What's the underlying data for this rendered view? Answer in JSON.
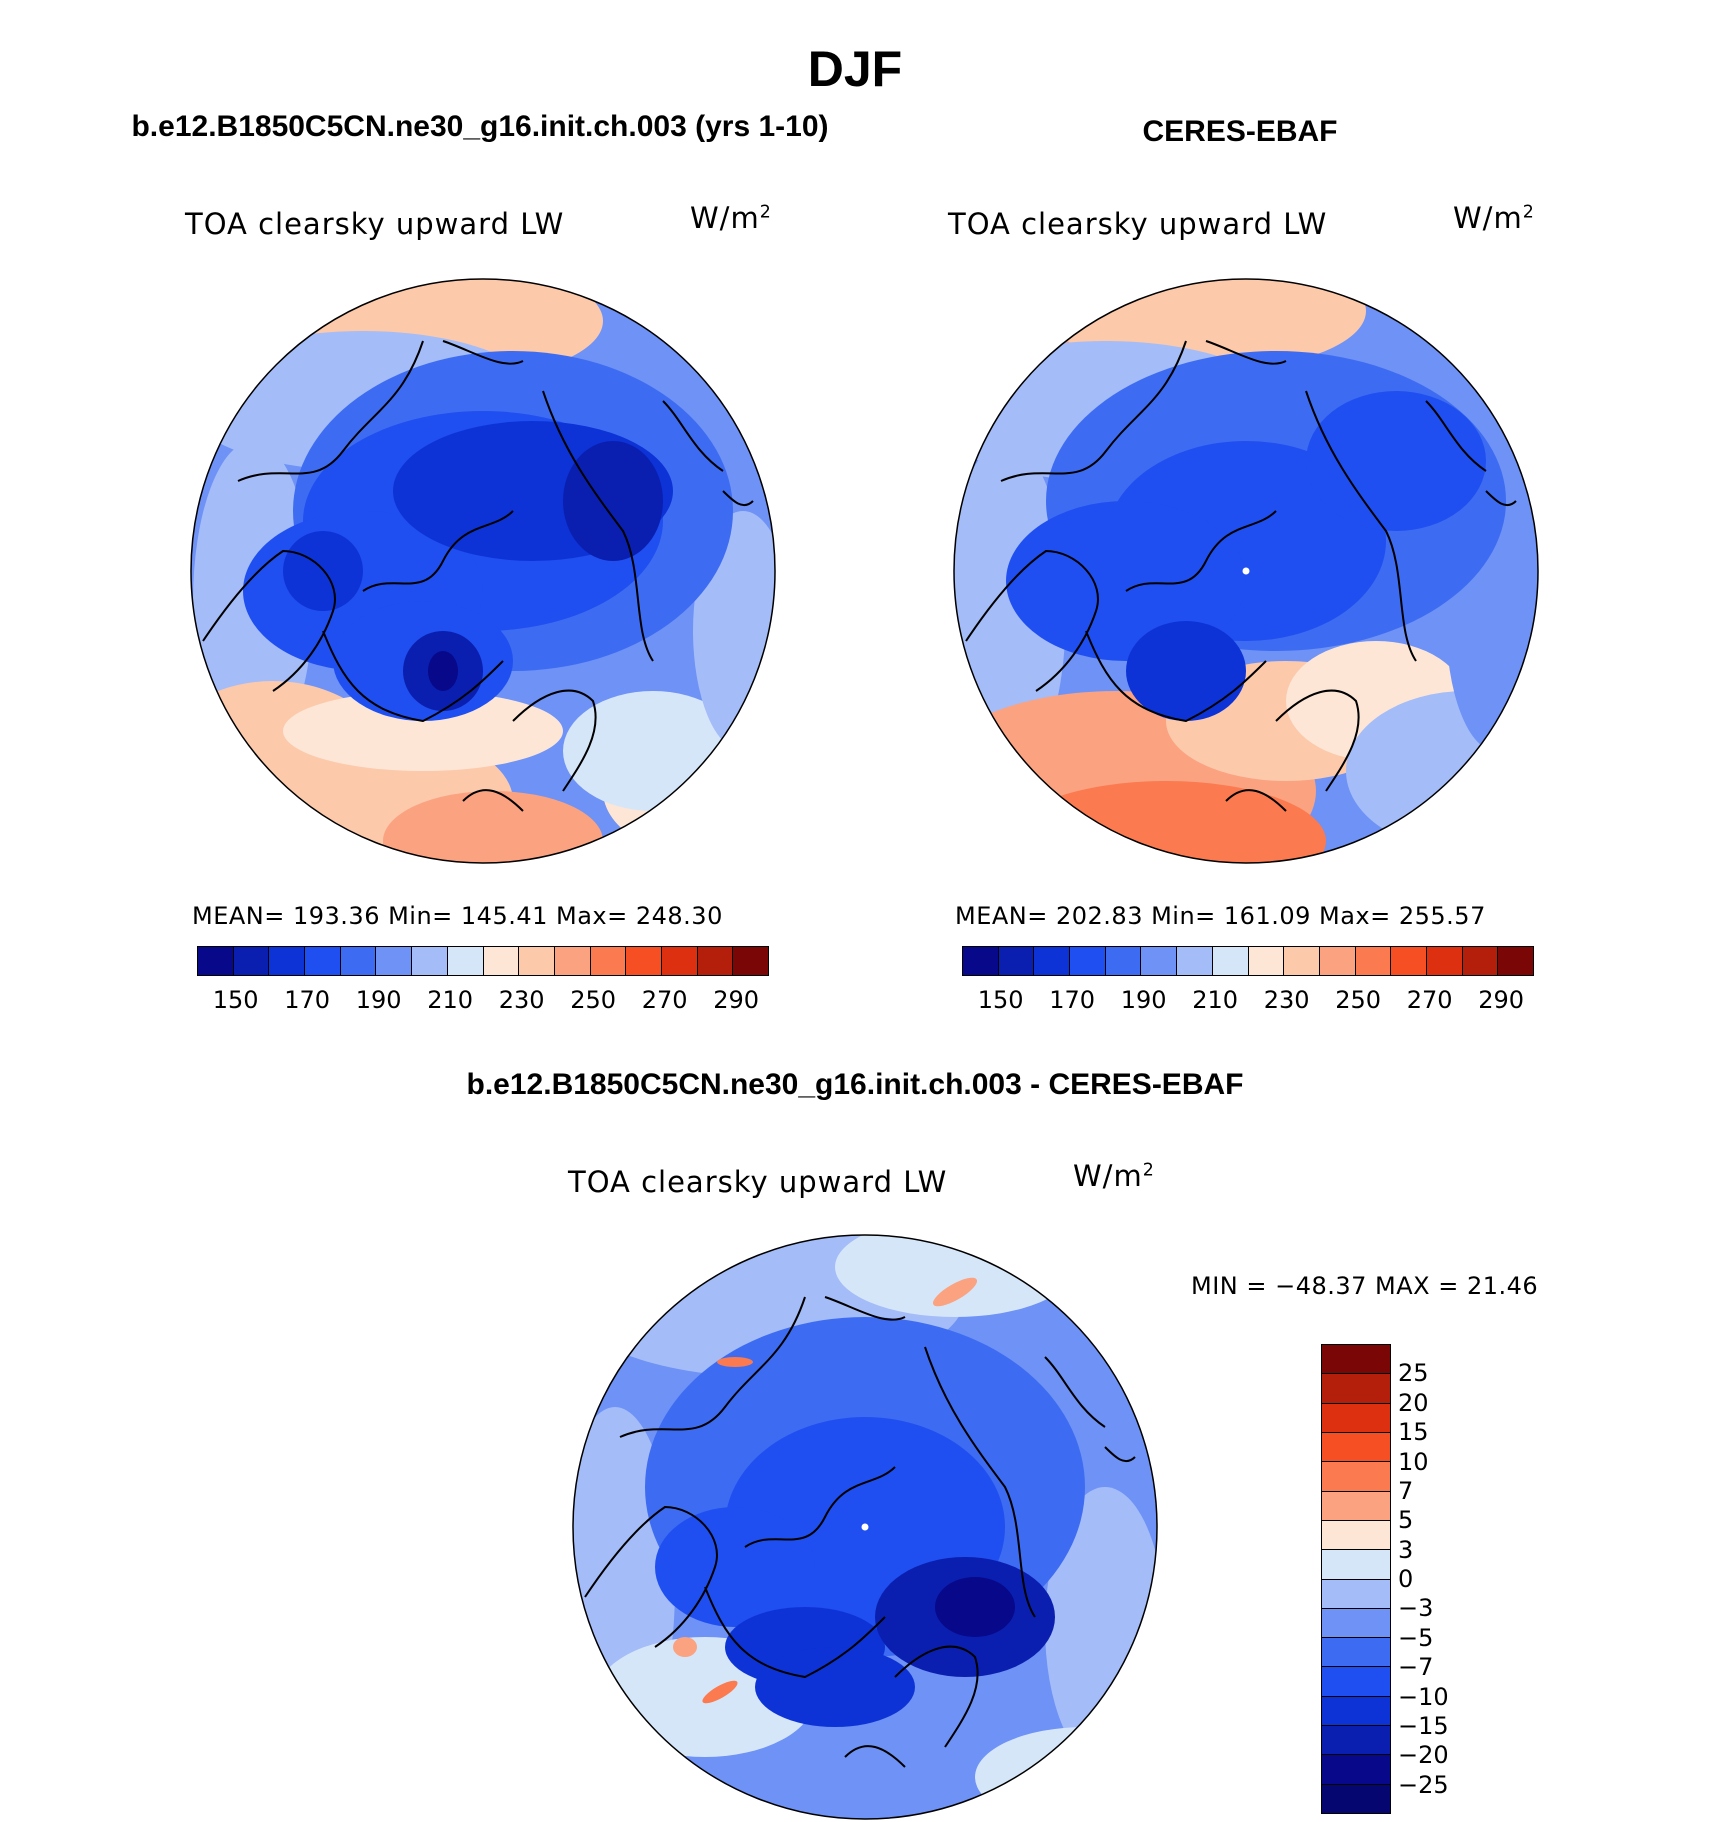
{
  "main_title": "DJF",
  "panels": [
    {
      "header": "b.e12.B1850C5CN.ne30_g16.init.ch.003 (yrs 1-10)",
      "variable": "TOA clearsky upward LW",
      "units": "W/m",
      "units_exp": "2",
      "stats": "MEAN= 193.36   Min= 145.41   Max= 248.30"
    },
    {
      "header": "CERES-EBAF",
      "variable": "TOA clearsky upward LW",
      "units": "W/m",
      "units_exp": "2",
      "stats": "MEAN= 202.83   Min= 161.09   Max= 255.57"
    }
  ],
  "diff_panel": {
    "header": "b.e12.B1850C5CN.ne30_g16.init.ch.003 - CERES-EBAF",
    "variable": "TOA clearsky upward LW",
    "units": "W/m",
    "units_exp": "2",
    "stats": "MIN = −48.37 MAX =  21.46"
  },
  "colorbar_main": {
    "labels": [
      "150",
      "170",
      "190",
      "210",
      "230",
      "250",
      "270",
      "290"
    ],
    "colors": [
      "#08088a",
      "#0a1fb0",
      "#0d33d6",
      "#1f4ff0",
      "#3d6cf2",
      "#6e92f5",
      "#a4bcf7",
      "#d6e6f9",
      "#fde6d6",
      "#fcc9ab",
      "#fba281",
      "#fb7a4f",
      "#f64f23",
      "#dd3011",
      "#b31f0a",
      "#7a0606"
    ]
  },
  "colorbar_diff": {
    "labels": [
      "25",
      "20",
      "15",
      "10",
      "7",
      "5",
      "3",
      "0",
      "−3",
      "−5",
      "−7",
      "−10",
      "−15",
      "−20",
      "−25"
    ],
    "colors": [
      "#7a0606",
      "#b31f0a",
      "#dd3011",
      "#f64f23",
      "#fb7a4f",
      "#fba281",
      "#fde6d6",
      "#d6e6f9",
      "#a4bcf7",
      "#6e92f5",
      "#3d6cf2",
      "#1f4ff0",
      "#0d33d6",
      "#0a1fb0",
      "#08088a",
      "#060670"
    ]
  }
}
